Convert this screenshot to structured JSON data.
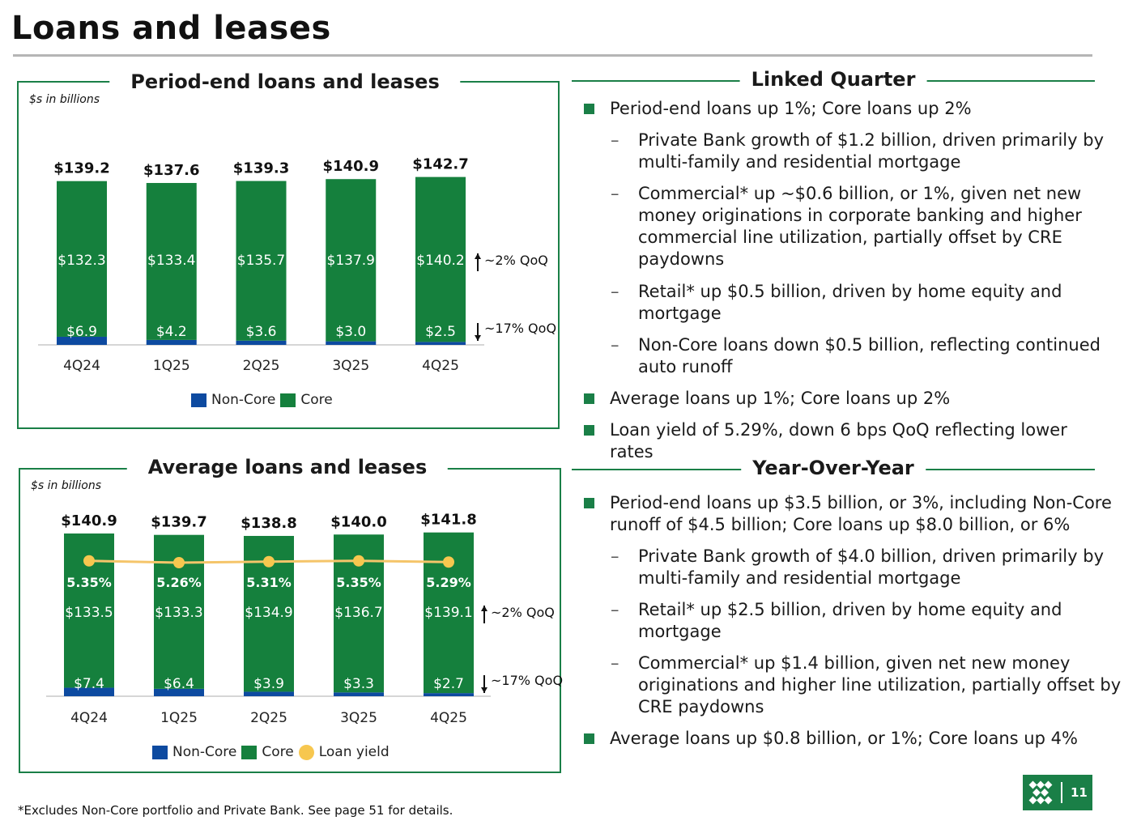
{
  "page": {
    "title": "Loans and leases",
    "page_number": "11",
    "footnote": "*Excludes Non-Core portfolio and Private Bank. See page 51 for details."
  },
  "colors": {
    "core": "#15803d",
    "non_core": "#0d4aa0",
    "yield": "#f5c56a",
    "yield_dot": "#f7c74f",
    "accent": "#1a7f47"
  },
  "chart_data": [
    {
      "type": "bar",
      "title": "Period-end loans and leases",
      "units": "$s in billions",
      "stacked": true,
      "categories": [
        "4Q24",
        "1Q25",
        "2Q25",
        "3Q25",
        "4Q25"
      ],
      "series": [
        {
          "name": "Non-Core",
          "values": [
            6.9,
            4.2,
            3.6,
            3.0,
            2.5
          ],
          "labels": [
            "$6.9",
            "$4.2",
            "$3.6",
            "$3.0",
            "$2.5"
          ]
        },
        {
          "name": "Core",
          "values": [
            132.3,
            133.4,
            135.7,
            137.9,
            140.2
          ],
          "labels": [
            "$132.3",
            "$133.4",
            "$135.7",
            "$137.9",
            "$140.2"
          ]
        }
      ],
      "totals": [
        139.2,
        137.6,
        139.3,
        140.9,
        142.7
      ],
      "total_labels": [
        "$139.2",
        "$137.6",
        "$139.3",
        "$140.9",
        "$142.7"
      ],
      "annotations": {
        "core": "~2% QoQ",
        "non_core": "~17% QoQ"
      },
      "legend": [
        "Non-Core",
        "Core"
      ],
      "ylim": [
        0,
        150
      ]
    },
    {
      "type": "bar",
      "title": "Average loans and leases",
      "units": "$s in billions",
      "stacked": true,
      "categories": [
        "4Q24",
        "1Q25",
        "2Q25",
        "3Q25",
        "4Q25"
      ],
      "series": [
        {
          "name": "Non-Core",
          "values": [
            7.4,
            6.4,
            3.9,
            3.3,
            2.7
          ],
          "labels": [
            "$7.4",
            "$6.4",
            "$3.9",
            "$3.3",
            "$2.7"
          ]
        },
        {
          "name": "Core",
          "values": [
            133.5,
            133.3,
            134.9,
            136.7,
            139.1
          ],
          "labels": [
            "$133.5",
            "$133.3",
            "$134.9",
            "$136.7",
            "$139.1"
          ]
        },
        {
          "name": "Loan yield",
          "type": "line",
          "values": [
            5.35,
            5.26,
            5.31,
            5.35,
            5.29
          ],
          "labels": [
            "5.35%",
            "5.26%",
            "5.31%",
            "5.35%",
            "5.29%"
          ]
        }
      ],
      "totals": [
        140.9,
        139.7,
        138.8,
        140.0,
        141.8
      ],
      "total_labels": [
        "$140.9",
        "$139.7",
        "$138.8",
        "$140.0",
        "$141.8"
      ],
      "annotations": {
        "core": "~2% QoQ",
        "non_core": "~17% QoQ"
      },
      "legend": [
        "Non-Core",
        "Core",
        "Loan yield"
      ],
      "ylim": [
        0,
        150
      ]
    }
  ],
  "linked_quarter": {
    "heading": "Linked Quarter",
    "b1": "Period-end loans up 1%; Core loans up 2%",
    "s1": "Private Bank growth of $1.2 billion, driven primarily by multi-family and residential mortgage",
    "s2": "Commercial* up ~$0.6 billion, or 1%, given net new money originations in corporate banking and higher commercial line utilization, partially offset by CRE paydowns",
    "s3": "Retail* up $0.5 billion, driven by home equity and mortgage",
    "s4": "Non-Core loans down $0.5 billion, reflecting continued auto runoff",
    "b2": "Average loans up 1%; Core loans up 2%",
    "b3": "Loan yield of 5.29%, down 6 bps QoQ reflecting lower rates"
  },
  "year_over_year": {
    "heading": "Year-Over-Year",
    "b1": "Period-end loans up $3.5 billion, or 3%, including Non-Core runoff of $4.5 billion; Core loans up $8.0 billion, or 6%",
    "s1": "Private Bank growth of $4.0 billion, driven primarily by multi-family and residential mortgage",
    "s2": "Retail* up $2.5 billion, driven by home equity and mortgage",
    "s3": "Commercial* up $1.4 billion, given net new money originations and higher line utilization, partially offset by CRE paydowns",
    "b2": "Average loans up $0.8 billion, or 1%; Core loans up 4%"
  }
}
